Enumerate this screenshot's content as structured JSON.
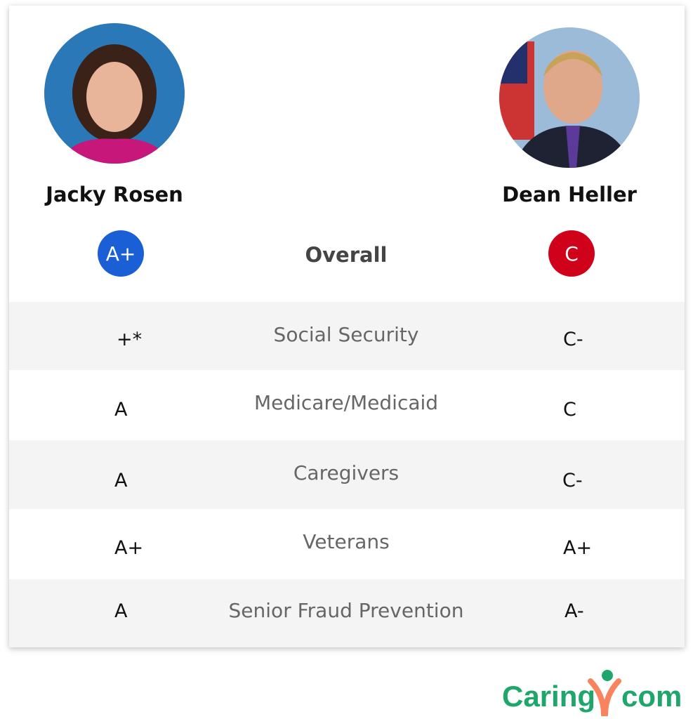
{
  "left_candidate": {
    "name": "Jacky Rosen",
    "overall": "A+",
    "badge_color": "#1a5fd6"
  },
  "right_candidate": {
    "name": "Dean Heller",
    "overall": "C",
    "badge_color": "#d0021b"
  },
  "overall_label": "Overall",
  "rows": [
    {
      "category": "Social Security",
      "left": "+*",
      "right": "C-"
    },
    {
      "category": "Medicare/Medicaid",
      "left": "A",
      "right": "C"
    },
    {
      "category": "Caregivers",
      "left": "A",
      "right": "C-"
    },
    {
      "category": "Veterans",
      "left": "A+",
      "right": "A+"
    },
    {
      "category": "Senior Fraud Prevention",
      "left": "A",
      "right": "A-"
    }
  ],
  "logo": {
    "text_left": "Caring",
    "text_right": "com",
    "green": "#1ea66b",
    "orange": "#f7845e"
  }
}
